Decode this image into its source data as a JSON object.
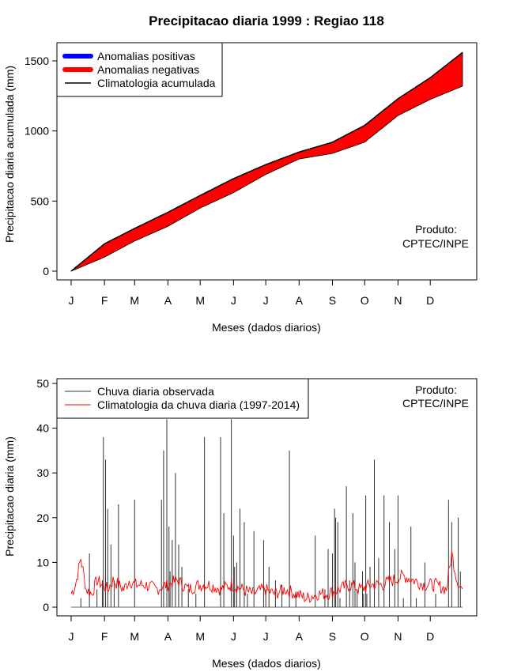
{
  "title": "Precipitacao diaria 1999 : Regiao 118",
  "months": [
    "J",
    "F",
    "M",
    "A",
    "M",
    "J",
    "J",
    "A",
    "S",
    "O",
    "N",
    "D"
  ],
  "colors": {
    "positive": "#0000ff",
    "negative": "#ff0000",
    "observed": "#333333",
    "climatology": "#ff0000"
  },
  "chart_data": [
    {
      "type": "area",
      "xlabel": "Meses (dados diarios)",
      "ylabel": "Precipitacao diaria acumulada (mm)",
      "ylim": [
        0,
        1560
      ],
      "yticks": [
        "0",
        "500",
        "1000",
        "1500"
      ],
      "legend": [
        "Anomalias positivas",
        "Anomalias negativas",
        "Climatologia acumulada"
      ],
      "annotation": [
        "Produto:",
        "CPTEC/INPE"
      ],
      "climatology_cumulative": {
        "days": [
          1,
          32,
          60,
          91,
          121,
          152,
          182,
          213,
          244,
          274,
          305,
          335,
          365
        ],
        "values": [
          0,
          195,
          305,
          420,
          540,
          660,
          760,
          850,
          920,
          1040,
          1230,
          1380,
          1560
        ]
      },
      "observed_cumulative": {
        "days": [
          1,
          32,
          60,
          91,
          121,
          152,
          182,
          213,
          244,
          274,
          305,
          335,
          365
        ],
        "values": [
          0,
          100,
          215,
          320,
          450,
          560,
          690,
          800,
          840,
          920,
          1110,
          1225,
          1320
        ]
      }
    },
    {
      "type": "line",
      "xlabel": "Meses (dados diarios)",
      "ylabel": "Precipitacao diaria (mm)",
      "ylim": [
        0,
        50
      ],
      "yticks": [
        "0",
        "10",
        "20",
        "30",
        "40",
        "50"
      ],
      "legend": [
        "Chuva diaria observada",
        "Climatologia da chuva diaria (1997-2014)"
      ],
      "annotation": [
        "Produto:",
        "CPTEC/INPE"
      ],
      "observed_daily": {
        "days": [
          10,
          18,
          25,
          30,
          31,
          33,
          35,
          38,
          41,
          45,
          60,
          85,
          87,
          90,
          92,
          93,
          95,
          98,
          101,
          104,
          110,
          117,
          125,
          140,
          143,
          150,
          152,
          153,
          155,
          158,
          162,
          165,
          171,
          180,
          182,
          185,
          191,
          197,
          204,
          210,
          228,
          237,
          240,
          244,
          246,
          247,
          249,
          251,
          257,
          260,
          263,
          265,
          267,
          272,
          273,
          275,
          276,
          279,
          283,
          287,
          292,
          297,
          302,
          305,
          310,
          317,
          322,
          330,
          340,
          352,
          355,
          361,
          363
        ],
        "values": [
          2,
          12,
          4,
          6,
          38,
          33,
          22,
          14,
          6,
          23,
          24,
          24,
          35,
          42,
          18,
          8,
          15,
          30,
          14,
          9,
          4,
          3,
          38,
          38,
          21,
          42,
          16,
          9,
          10,
          22,
          19,
          3,
          17,
          15,
          4,
          9,
          6,
          5,
          35,
          3,
          16,
          4,
          13,
          12,
          22,
          20,
          19,
          2,
          27,
          6,
          21,
          10,
          4,
          8,
          3,
          25,
          3,
          9,
          33,
          11,
          25,
          19,
          13,
          25,
          2,
          18,
          2,
          10,
          3,
          24,
          19,
          20,
          8
        ]
      },
      "climatology_daily": {
        "days": [
          1,
          5,
          10,
          15,
          20,
          25,
          30,
          35,
          40,
          45,
          50,
          55,
          60,
          70,
          80,
          90,
          100,
          110,
          120,
          130,
          140,
          150,
          160,
          170,
          180,
          190,
          200,
          210,
          220,
          230,
          240,
          250,
          260,
          270,
          280,
          290,
          300,
          310,
          320,
          330,
          340,
          350,
          355,
          360,
          365
        ],
        "values": [
          3,
          5,
          11,
          4,
          3,
          6,
          5,
          4,
          6,
          5,
          4,
          6,
          5,
          5,
          4,
          5,
          6,
          4,
          5,
          5,
          4,
          5,
          4,
          3,
          4,
          3,
          4,
          3,
          2,
          3,
          3,
          4,
          5,
          4,
          5,
          5,
          6,
          7,
          6,
          5,
          5,
          4,
          12,
          6,
          4
        ]
      }
    }
  ]
}
